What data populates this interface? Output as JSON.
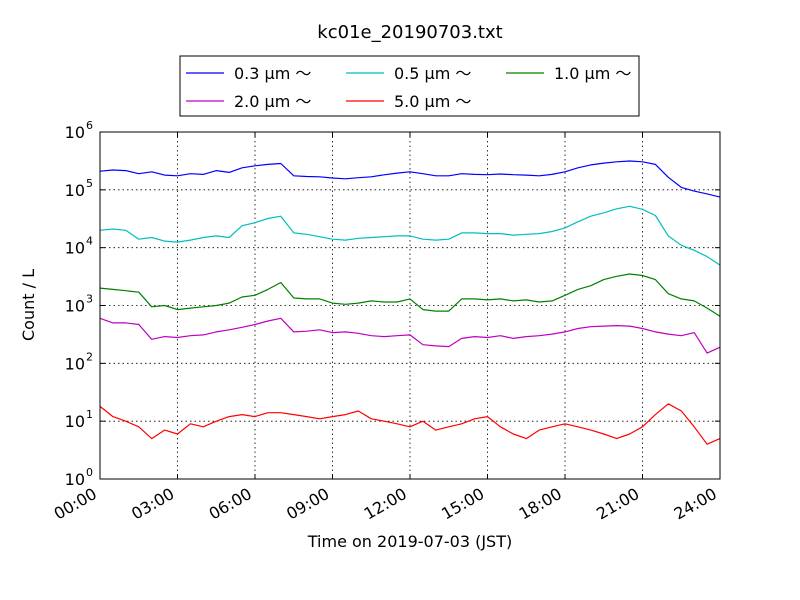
{
  "chart_data": {
    "type": "line",
    "title": "kc01e_20190703.txt",
    "xlabel": "Time on 2019-07-03 (JST)",
    "ylabel": "Count / L",
    "xlim": [
      0,
      24
    ],
    "ylim": [
      1,
      1000000
    ],
    "yscale": "log",
    "grid": true,
    "legend_position": "top, above plot",
    "x_ticks": [
      0,
      3,
      6,
      9,
      12,
      15,
      18,
      21,
      24
    ],
    "x_tick_labels": [
      "00:00",
      "03:00",
      "06:00",
      "09:00",
      "12:00",
      "15:00",
      "18:00",
      "21:00",
      "24:00"
    ],
    "y_tick_bases": [
      "10",
      "10",
      "10",
      "10",
      "10",
      "10",
      "10"
    ],
    "y_tick_exponents": [
      "0",
      "1",
      "2",
      "3",
      "4",
      "5",
      "6"
    ],
    "x": [
      0,
      0.5,
      1,
      1.5,
      2,
      2.5,
      3,
      3.5,
      4,
      4.5,
      5,
      5.5,
      6,
      6.5,
      7,
      7.5,
      8,
      8.5,
      9,
      9.5,
      10,
      10.5,
      11,
      11.5,
      12,
      12.5,
      13,
      13.5,
      14,
      14.5,
      15,
      15.5,
      16,
      16.5,
      17,
      17.5,
      18,
      18.5,
      19,
      19.5,
      20,
      20.5,
      21,
      21.5,
      22,
      22.5,
      23,
      23.5,
      24
    ],
    "series": [
      {
        "name": "0.3 μm ～",
        "color": "#0000ff",
        "values": [
          210000,
          220000,
          215000,
          190000,
          205000,
          180000,
          175000,
          190000,
          185000,
          215000,
          200000,
          240000,
          260000,
          275000,
          285000,
          175000,
          170000,
          168000,
          160000,
          155000,
          162000,
          168000,
          182000,
          195000,
          205000,
          190000,
          175000,
          175000,
          190000,
          185000,
          183000,
          188000,
          183000,
          180000,
          175000,
          185000,
          205000,
          240000,
          270000,
          290000,
          305000,
          315000,
          305000,
          275000,
          165000,
          110000,
          95000,
          85000,
          75000
        ]
      },
      {
        "name": "0.5 μm ～",
        "color": "#00bfbf",
        "values": [
          20000,
          21000,
          20000,
          14000,
          15000,
          13000,
          12500,
          13500,
          15000,
          16000,
          15000,
          24000,
          27000,
          32000,
          35000,
          18000,
          17000,
          15500,
          14000,
          13500,
          14500,
          15000,
          15500,
          16000,
          16000,
          14000,
          13500,
          14000,
          18000,
          18000,
          17500,
          17500,
          16500,
          17000,
          17500,
          19000,
          22000,
          28000,
          35000,
          40000,
          47000,
          52000,
          46000,
          36000,
          16000,
          11000,
          9000,
          7000,
          5000
        ]
      },
      {
        "name": "1.0 μm ～",
        "color": "#008000",
        "values": [
          2000,
          1900,
          1800,
          1700,
          950,
          1000,
          850,
          900,
          950,
          1000,
          1100,
          1400,
          1500,
          1900,
          2500,
          1350,
          1300,
          1300,
          1100,
          1050,
          1100,
          1200,
          1150,
          1150,
          1300,
          850,
          800,
          800,
          1300,
          1300,
          1250,
          1300,
          1200,
          1250,
          1150,
          1200,
          1500,
          1900,
          2200,
          2800,
          3200,
          3500,
          3300,
          2800,
          1600,
          1300,
          1200,
          900,
          650
        ]
      },
      {
        "name": "2.0 μm ～",
        "color": "#bf00bf",
        "values": [
          600,
          500,
          500,
          470,
          260,
          290,
          280,
          300,
          310,
          350,
          380,
          420,
          470,
          540,
          600,
          350,
          360,
          380,
          340,
          350,
          330,
          300,
          290,
          300,
          310,
          210,
          200,
          195,
          270,
          290,
          280,
          300,
          270,
          290,
          300,
          320,
          350,
          400,
          430,
          440,
          450,
          440,
          400,
          350,
          320,
          300,
          340,
          150,
          190
        ]
      },
      {
        "name": "5.0 μm ～",
        "color": "#ff0000",
        "values": [
          18,
          12,
          10,
          8,
          5,
          7,
          6,
          9,
          8,
          10,
          12,
          13,
          12,
          14,
          14,
          13,
          12,
          11,
          12,
          13,
          15,
          11,
          10,
          9,
          8,
          10,
          7,
          8,
          9,
          11,
          12,
          8,
          6,
          5,
          7,
          8,
          9,
          8,
          7,
          6,
          5,
          6,
          8,
          13,
          20,
          15,
          8,
          4,
          5
        ]
      }
    ]
  }
}
